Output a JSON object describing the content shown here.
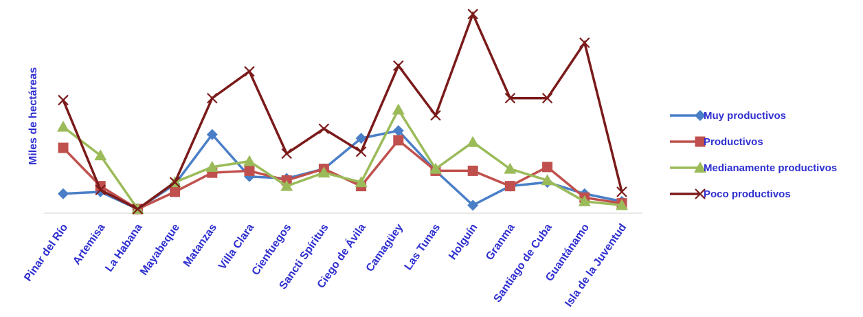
{
  "chart_data": {
    "type": "line",
    "ylabel": "Miles de hectáreas",
    "xlabel": "",
    "categories": [
      "Pinar del Río",
      "Artemisa",
      "La Habana",
      "Mayabeque",
      "Matanzas",
      "Villa Clara",
      "Cienfuegos",
      "Sancti Spíritus",
      "Ciego de Ávila",
      "Camagüey",
      "Las Tunas",
      "Holguín",
      "Granma",
      "Santiago de Cuba",
      "Guantánamo",
      "Isla de la Juventud"
    ],
    "ylim": [
      0,
      100
    ],
    "grid": false,
    "legend_position": "right",
    "series": [
      {
        "name": "Muy productivos",
        "color": "#4a7fc7",
        "marker": "diamond",
        "values": [
          8,
          9,
          0,
          13,
          39,
          17,
          16,
          21,
          37,
          41,
          20,
          2,
          12,
          14,
          8,
          4
        ]
      },
      {
        "name": "Productivos",
        "color": "#c0504d",
        "marker": "square",
        "values": [
          32,
          12,
          0,
          9,
          19,
          20,
          15,
          21,
          12,
          36,
          20,
          20,
          12,
          22,
          6,
          3
        ]
      },
      {
        "name": "Medianamente productivos",
        "color": "#9bbb59",
        "marker": "triangle",
        "values": [
          43,
          28,
          0,
          14,
          22,
          25,
          12,
          19,
          14,
          52,
          21,
          35,
          21,
          15,
          4,
          2
        ]
      },
      {
        "name": "Poco  productivos",
        "color": "#7b1a1a",
        "marker": "x",
        "values": [
          57,
          10,
          0,
          14,
          58,
          72,
          29,
          42,
          30,
          75,
          49,
          102,
          58,
          58,
          87,
          9
        ]
      }
    ]
  }
}
